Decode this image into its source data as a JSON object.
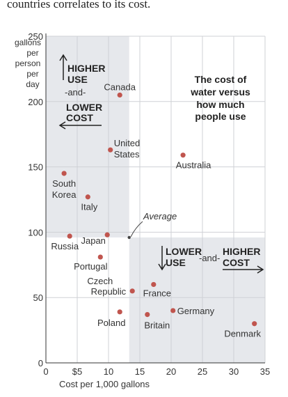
{
  "intro_text": "countries correlates to its cost.",
  "chart_data": {
    "type": "scatter",
    "title": "The cost of water versus how much people use",
    "title_lines": [
      "The cost of",
      "water versus",
      "how much",
      "people use"
    ],
    "xlabel": "Cost per 1,000 gallons",
    "ylabel_lines": [
      "gallons",
      "per",
      "person",
      "per",
      "day"
    ],
    "xlim": [
      0,
      35
    ],
    "ylim": [
      0,
      250
    ],
    "grid": true,
    "xticks": [
      {
        "v": 0,
        "label": "0"
      },
      {
        "v": 5,
        "label": "$5"
      },
      {
        "v": 10,
        "label": "10"
      },
      {
        "v": 15,
        "label": "15"
      },
      {
        "v": 20,
        "label": "20"
      },
      {
        "v": 25,
        "label": "25"
      },
      {
        "v": 30,
        "label": "30"
      },
      {
        "v": 35,
        "label": "35"
      }
    ],
    "yticks": [
      {
        "v": 0,
        "label": "0"
      },
      {
        "v": 50,
        "label": "50"
      },
      {
        "v": 100,
        "label": "100"
      },
      {
        "v": 150,
        "label": "150"
      },
      {
        "v": 200,
        "label": "200"
      },
      {
        "v": 250,
        "label": "250"
      }
    ],
    "average": {
      "x": 13.3,
      "y": 96,
      "label": "Average"
    },
    "points": [
      {
        "name": "Canada",
        "x": 11.8,
        "y": 205
      },
      {
        "name": "United States",
        "x": 10.3,
        "y": 163
      },
      {
        "name": "Australia",
        "x": 21.9,
        "y": 159
      },
      {
        "name": "South Korea",
        "x": 2.9,
        "y": 145
      },
      {
        "name": "Italy",
        "x": 6.7,
        "y": 127
      },
      {
        "name": "Russia",
        "x": 3.8,
        "y": 97
      },
      {
        "name": "Japan",
        "x": 9.8,
        "y": 98
      },
      {
        "name": "Portugal",
        "x": 8.7,
        "y": 81
      },
      {
        "name": "Czech Republic",
        "x": 13.8,
        "y": 55
      },
      {
        "name": "France",
        "x": 17.2,
        "y": 60
      },
      {
        "name": "Germany",
        "x": 20.3,
        "y": 40
      },
      {
        "name": "Poland",
        "x": 11.8,
        "y": 39
      },
      {
        "name": "Britain",
        "x": 16.2,
        "y": 37
      },
      {
        "name": "Denmark",
        "x": 33.3,
        "y": 30
      }
    ],
    "quadrant_labels": {
      "top_left": {
        "higher": "HIGHER",
        "use": "USE",
        "and": "-and-",
        "lower": "LOWER",
        "cost": "COST"
      },
      "bottom_right": {
        "lower": "LOWER",
        "use": "USE",
        "and": "-and-",
        "higher": "HIGHER",
        "cost": "COST"
      }
    }
  },
  "colors": {
    "dot": "#c0554e",
    "shade": "#e6e8ec",
    "grid": "#cfd1d6",
    "text": "#222222"
  }
}
